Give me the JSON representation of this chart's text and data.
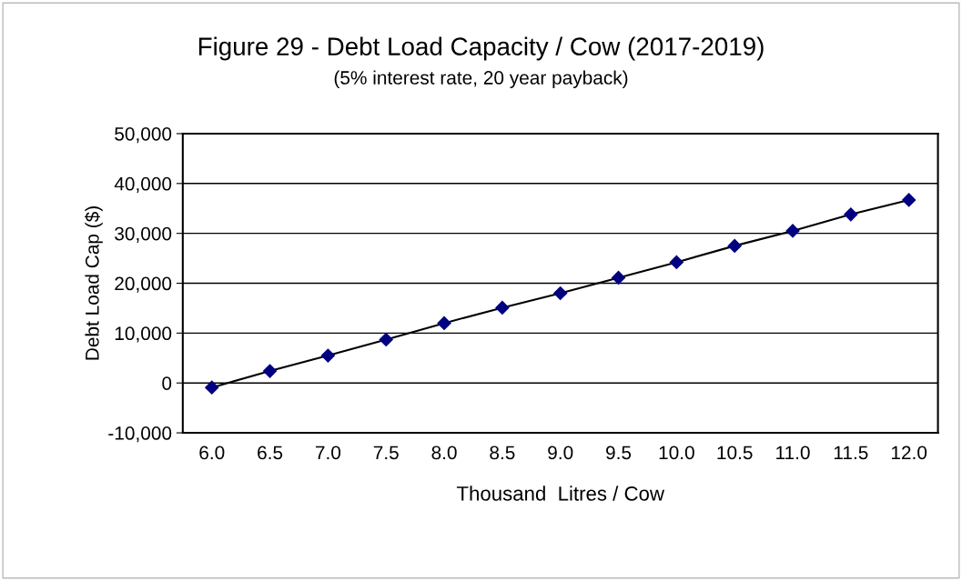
{
  "chart_data": {
    "type": "line",
    "title": "Figure 29 - Debt Load Capacity / Cow (2017-2019)",
    "subtitle": "(5% interest rate, 20 year payback)",
    "xlabel": "Thousand  Litres / Cow",
    "ylabel": "Debt Load Cap ($)",
    "categories": [
      "6.0",
      "6.5",
      "7.0",
      "7.5",
      "8.0",
      "8.5",
      "9.0",
      "9.5",
      "10.0",
      "10.5",
      "11.0",
      "11.5",
      "12.0"
    ],
    "series": [
      {
        "color": "#000080",
        "values": [
          -900,
          2400,
          5500,
          8700,
          12000,
          15100,
          18000,
          21100,
          24200,
          27500,
          30500,
          33800,
          36700
        ]
      }
    ],
    "ylim": [
      -10000,
      50000
    ],
    "yticks": [
      {
        "value": -10000,
        "label": "-10,000"
      },
      0,
      {
        "value": 10000,
        "label": "10,000"
      },
      {
        "value": 20000,
        "label": "20,000"
      },
      {
        "value": 30000,
        "label": "30,000"
      },
      {
        "value": 40000,
        "label": "40,000"
      },
      {
        "value": 50000,
        "label": "50,000"
      }
    ],
    "grid": "y",
    "marker": "diamond",
    "line_style": "solid"
  }
}
